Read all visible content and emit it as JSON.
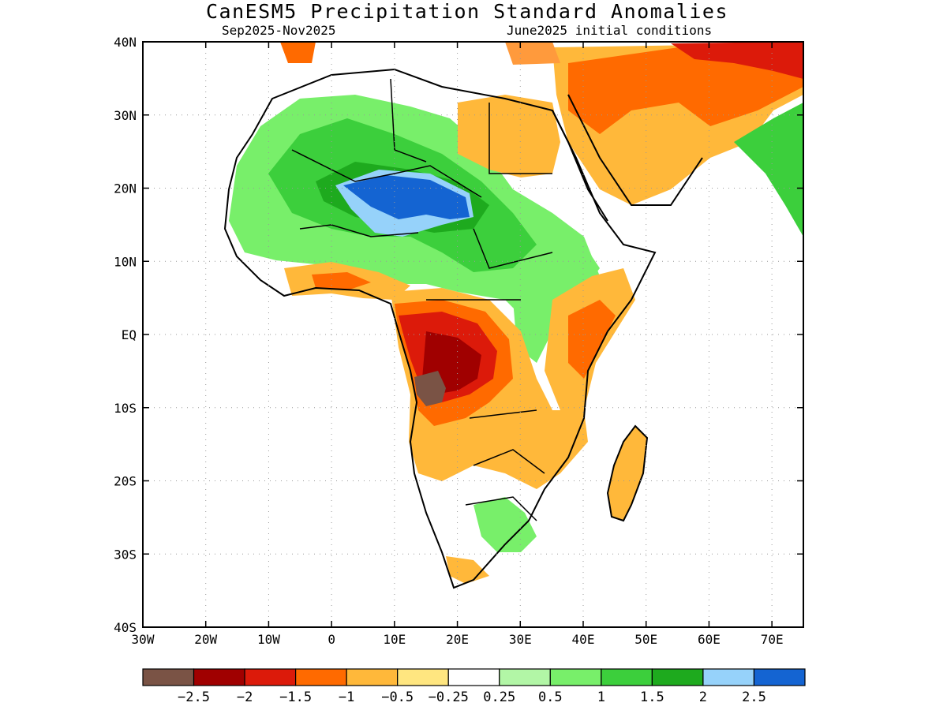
{
  "title": "CanESM5 Precipitation Standard Anomalies",
  "season_label": "Sep2025-Nov2025",
  "init_label": "June2025 initial conditions",
  "map": {
    "lat_range": [
      -40,
      40
    ],
    "lon_range": [
      -30,
      75
    ],
    "lat_ticks": [
      {
        "value": 40,
        "label": "40N"
      },
      {
        "value": 30,
        "label": "30N"
      },
      {
        "value": 20,
        "label": "20N"
      },
      {
        "value": 10,
        "label": "10N"
      },
      {
        "value": 0,
        "label": "EQ"
      },
      {
        "value": -10,
        "label": "10S"
      },
      {
        "value": -20,
        "label": "20S"
      },
      {
        "value": -30,
        "label": "30S"
      },
      {
        "value": -40,
        "label": "40S"
      }
    ],
    "lon_ticks": [
      {
        "value": -30,
        "label": "30W"
      },
      {
        "value": -20,
        "label": "20W"
      },
      {
        "value": -10,
        "label": "10W"
      },
      {
        "value": 0,
        "label": "0"
      },
      {
        "value": 10,
        "label": "10E"
      },
      {
        "value": 20,
        "label": "20E"
      },
      {
        "value": 30,
        "label": "30E"
      },
      {
        "value": 40,
        "label": "40E"
      },
      {
        "value": 50,
        "label": "50E"
      },
      {
        "value": 60,
        "label": "60E"
      },
      {
        "value": 70,
        "label": "70E"
      }
    ],
    "grid": "dotted"
  },
  "colorbar": {
    "colors": [
      "#7a5345",
      "#a00000",
      "#dc1a0a",
      "#ff6a00",
      "#ffb83a",
      "#ffe680",
      "#ffffff",
      "#b2f6a6",
      "#78ef6a",
      "#3ccf3c",
      "#1eaa1e",
      "#96d2fa",
      "#1464d2"
    ],
    "labels": [
      "-2.5",
      "-2",
      "-1.5",
      "-1",
      "-0.5",
      "-0.25",
      "0.25",
      "0.5",
      "1",
      "1.5",
      "2",
      "2.5"
    ]
  }
}
